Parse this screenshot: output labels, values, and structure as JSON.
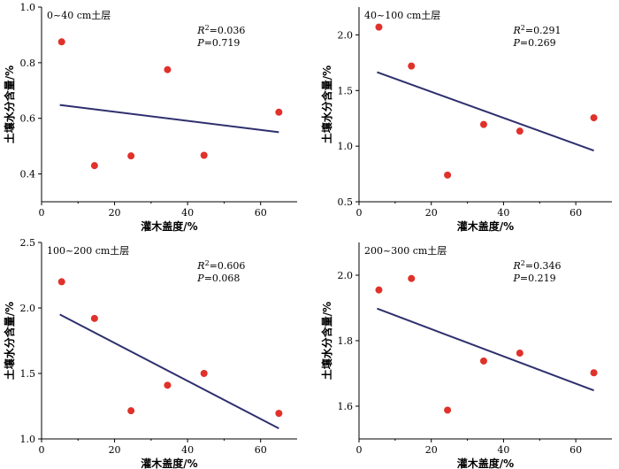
{
  "chart_data": [
    {
      "type": "scatter",
      "title": "0~40 cm土层",
      "xlabel": "灌木盖度/%",
      "ylabel": "土壤水分含量/%",
      "xlim": [
        0,
        70
      ],
      "ylim": [
        0.3,
        1.0
      ],
      "xticks": [
        0,
        20,
        40,
        60
      ],
      "yticks": [
        0.4,
        0.6,
        0.8,
        1.0
      ],
      "ytick_decimals": 1,
      "r2": "0.036",
      "p": "0.719",
      "x": [
        5.5,
        14.5,
        24.5,
        34.5,
        44.5,
        65
      ],
      "y": [
        0.875,
        0.43,
        0.465,
        0.775,
        0.467,
        0.622
      ],
      "fit": {
        "x": [
          5,
          65
        ],
        "y": [
          0.648,
          0.55
        ]
      },
      "grid": false,
      "legend": "none"
    },
    {
      "type": "scatter",
      "title": "40~100 cm土层",
      "xlabel": "灌木盖度/%",
      "ylabel": "土壤水分含量/%",
      "xlim": [
        0,
        70
      ],
      "ylim": [
        0.5,
        2.25
      ],
      "xticks": [
        0,
        20,
        40,
        60
      ],
      "yticks": [
        0.5,
        1.0,
        1.5,
        2.0
      ],
      "ytick_decimals": 1,
      "r2": "0.291",
      "p": "0.269",
      "x": [
        5.5,
        14.5,
        24.5,
        34.5,
        44.5,
        65
      ],
      "y": [
        2.07,
        1.72,
        0.74,
        1.195,
        1.135,
        1.255
      ],
      "fit": {
        "x": [
          5,
          65
        ],
        "y": [
          1.665,
          0.96
        ]
      },
      "grid": false,
      "legend": "none"
    },
    {
      "type": "scatter",
      "title": "100~200 cm土层",
      "xlabel": "灌木盖度/%",
      "ylabel": "土壤水分含量/%",
      "xlim": [
        0,
        70
      ],
      "ylim": [
        1.0,
        2.5
      ],
      "xticks": [
        0,
        20,
        40,
        60
      ],
      "yticks": [
        1.0,
        1.5,
        2.0,
        2.5
      ],
      "ytick_decimals": 1,
      "r2": "0.606",
      "p": "0.068",
      "x": [
        5.5,
        14.5,
        24.5,
        34.5,
        44.5,
        65
      ],
      "y": [
        2.2,
        1.92,
        1.215,
        1.41,
        1.5,
        1.195
      ],
      "fit": {
        "x": [
          5,
          65
        ],
        "y": [
          1.95,
          1.08
        ]
      },
      "grid": false,
      "legend": "none"
    },
    {
      "type": "scatter",
      "title": "200~300 cm土层",
      "xlabel": "灌木盖度/%",
      "ylabel": "土壤水分含量/%",
      "xlim": [
        0,
        70
      ],
      "ylim": [
        1.5,
        2.1
      ],
      "xticks": [
        0,
        20,
        40,
        60
      ],
      "yticks": [
        1.6,
        1.8,
        2.0
      ],
      "ytick_decimals": 1,
      "r2": "0.346",
      "p": "0.219",
      "x": [
        5.5,
        14.5,
        24.5,
        34.5,
        44.5,
        65
      ],
      "y": [
        1.955,
        1.99,
        1.588,
        1.738,
        1.762,
        1.702
      ],
      "fit": {
        "x": [
          5,
          65
        ],
        "y": [
          1.898,
          1.648
        ]
      },
      "grid": false,
      "legend": "none"
    }
  ],
  "labels": {
    "r2_key": "R",
    "r2_sup": "2",
    "p_key": "P",
    "eq": "="
  }
}
